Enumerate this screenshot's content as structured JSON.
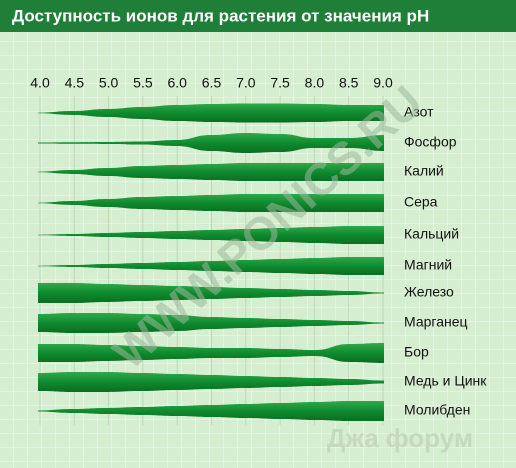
{
  "header": {
    "title": "Доступность ионов для растения от значения pH"
  },
  "ph_axis": [
    "4.0",
    "4.5",
    "5.0",
    "5.5",
    "6.0",
    "6.5",
    "7.0",
    "7.5",
    "8.0",
    "8.5",
    "9.0"
  ],
  "nutrients": [
    "Азот",
    "Фосфор",
    "Калий",
    "Сера",
    "Кальций",
    "Магний",
    "Железо",
    "Марганец",
    "Бор",
    "Медь и Цинк",
    "Молибден"
  ],
  "watermark": "WWW.PONICS.RU",
  "footer": "Джа форум"
}
